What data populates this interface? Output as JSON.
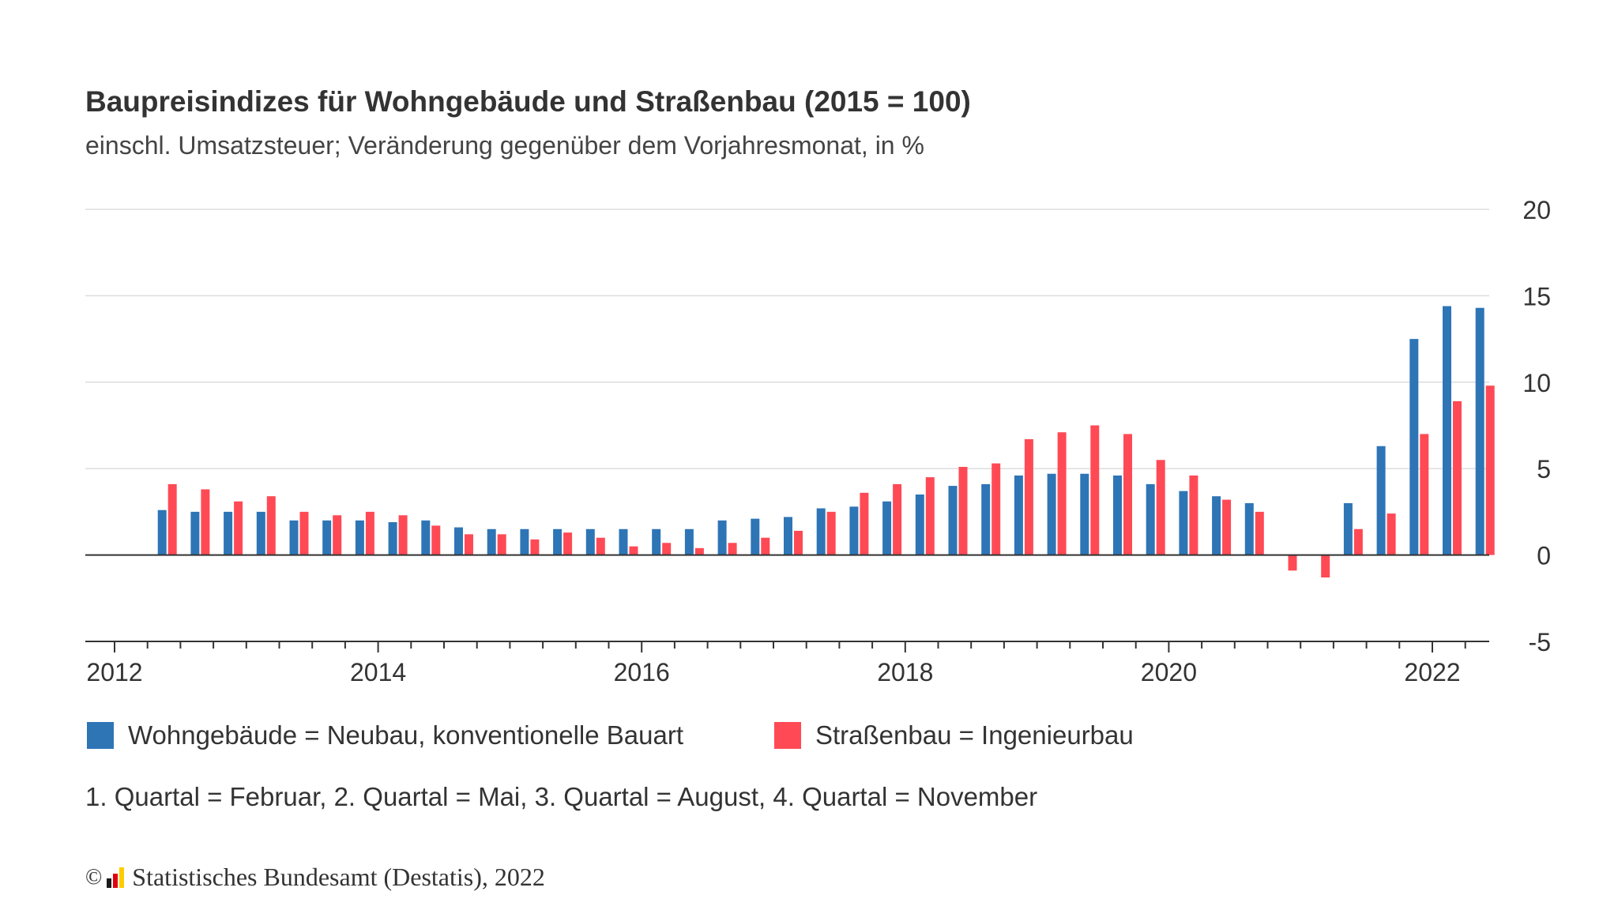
{
  "title": "Baupreisindizes für Wohngebäude und Straßenbau (2015 = 100)",
  "subtitle": "einschl. Umsatzsteuer; Veränderung gegenüber dem Vorjahresmonat, in %",
  "note": "1. Quartal = Februar, 2. Quartal = Mai, 3. Quartal = August, 4. Quartal = November",
  "source": {
    "copyright_symbol": "©",
    "text": "Statistisches Bundesamt (Destatis), 2022",
    "logo_icon": "destatis-logo-icon"
  },
  "colors": {
    "wohngebaeude": "#2e75b6",
    "strassenbau": "#ff4a55",
    "grid": "#dddddd",
    "axis": "#333333"
  },
  "chart_data": {
    "type": "bar",
    "title": "Baupreisindizes für Wohngebäude und Straßenbau (2015 = 100)",
    "subtitle": "einschl. Umsatzsteuer; Veränderung gegenüber dem Vorjahresmonat, in %",
    "ylim": [
      -5,
      20
    ],
    "yticks": [
      20,
      15,
      10,
      5,
      0,
      -5
    ],
    "xticks": [
      "2012",
      "2014",
      "2016",
      "2018",
      "2020",
      "2022"
    ],
    "grid": true,
    "legend_position": "bottom",
    "categories": [
      "2012-Q2",
      "2012-Q3",
      "2012-Q4",
      "2013-Q1",
      "2013-Q2",
      "2013-Q3",
      "2013-Q4",
      "2014-Q1",
      "2014-Q2",
      "2014-Q3",
      "2014-Q4",
      "2015-Q1",
      "2015-Q2",
      "2015-Q3",
      "2015-Q4",
      "2016-Q1",
      "2016-Q2",
      "2016-Q3",
      "2016-Q4",
      "2017-Q1",
      "2017-Q2",
      "2017-Q3",
      "2017-Q4",
      "2018-Q1",
      "2018-Q2",
      "2018-Q3",
      "2018-Q4",
      "2019-Q1",
      "2019-Q2",
      "2019-Q3",
      "2019-Q4",
      "2020-Q1",
      "2020-Q2",
      "2020-Q3",
      "2020-Q4",
      "2021-Q1",
      "2021-Q2",
      "2021-Q3",
      "2021-Q4",
      "2022-Q1",
      "2022-Q2"
    ],
    "series": [
      {
        "name": "Wohngebäude = Neubau, konventionelle Bauart",
        "color": "#2e75b6",
        "values": [
          2.6,
          2.5,
          2.5,
          2.5,
          2.0,
          2.0,
          2.0,
          1.9,
          2.0,
          1.6,
          1.5,
          1.5,
          1.5,
          1.5,
          1.5,
          1.5,
          1.5,
          2.0,
          2.1,
          2.2,
          2.7,
          2.8,
          3.1,
          3.5,
          4.0,
          4.1,
          4.6,
          4.7,
          4.7,
          4.6,
          4.1,
          3.7,
          3.4,
          3.0,
          null,
          null,
          3.0,
          6.3,
          12.5,
          14.4,
          14.3
        ]
      },
      {
        "name": "Straßenbau = Ingenieurbau",
        "color": "#ff4a55",
        "values": [
          4.1,
          3.8,
          3.1,
          3.4,
          2.5,
          2.3,
          2.5,
          2.3,
          1.7,
          1.2,
          1.2,
          0.9,
          1.3,
          1.0,
          0.5,
          0.7,
          0.4,
          0.7,
          1.0,
          1.4,
          2.5,
          3.6,
          4.1,
          4.5,
          5.1,
          5.3,
          6.7,
          7.1,
          7.5,
          7.0,
          5.5,
          4.6,
          3.2,
          2.5,
          -0.9,
          -1.3,
          1.5,
          2.4,
          7.0,
          8.9,
          9.8
        ]
      }
    ]
  }
}
